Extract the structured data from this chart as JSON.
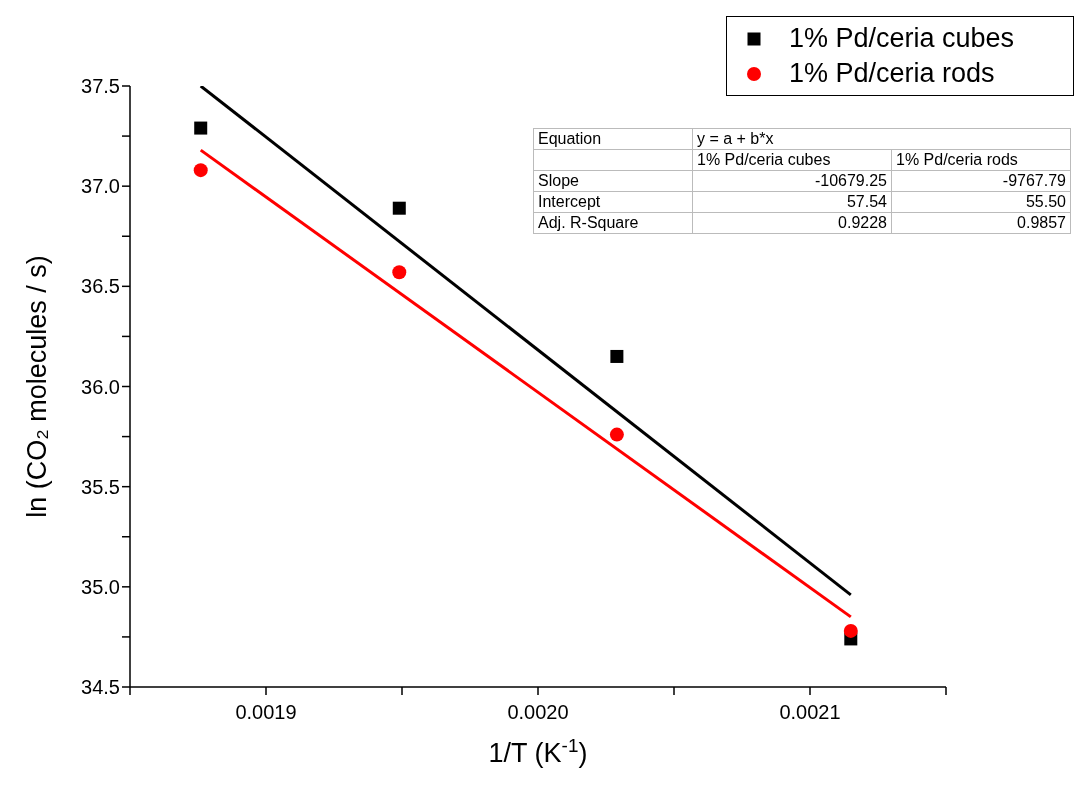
{
  "chart_data": {
    "type": "scatter",
    "xlabel": "1/T (K$^{-1}$)",
    "ylabel": "ln (CO₂ molecules / s)",
    "xlim": [
      0.00185,
      0.00215
    ],
    "ylim": [
      34.5,
      37.5
    ],
    "xticks": [
      {
        "value": 0.00185,
        "label": null
      },
      0.0019,
      {
        "value": 0.00195,
        "label": null
      },
      {
        "value": 0.002,
        "label": "0.0020"
      },
      {
        "value": 0.00205,
        "label": null
      },
      0.0021,
      {
        "value": 0.00215,
        "label": null
      }
    ],
    "yticks": [
      34.5,
      {
        "value": 34.75,
        "label": null
      },
      {
        "value": 35,
        "label": "35.0"
      },
      {
        "value": 35.25,
        "label": null
      },
      35.5,
      {
        "value": 35.75,
        "label": null
      },
      {
        "value": 36,
        "label": "36.0"
      },
      {
        "value": 36.25,
        "label": null
      },
      36.5,
      {
        "value": 36.75,
        "label": null
      },
      {
        "value": 37,
        "label": "37.0"
      },
      {
        "value": 37.25,
        "label": null
      },
      37.5
    ],
    "legend": "top right",
    "grid": false,
    "series": [
      {
        "name": "1% Pd/ceria cubes",
        "marker": "square",
        "color": "#000000",
        "x": [
          0.001876,
          0.001949,
          0.002029,
          0.002115
        ],
        "values": [
          37.29,
          36.89,
          36.15,
          34.74
        ]
      },
      {
        "name": "1% Pd/ceria rods",
        "marker": "circle",
        "color": "#ff0000",
        "x": [
          0.001876,
          0.001949,
          0.002029,
          0.002115
        ],
        "values": [
          37.08,
          36.57,
          35.76,
          34.78
        ]
      },
      {
        "type": "line",
        "color": "#000000",
        "x": [
          0.001876,
          0.002115
        ],
        "values": [
          37.5,
          34.96
        ]
      },
      {
        "type": "line",
        "color": "#ff0000",
        "x": [
          0.001876,
          0.002115
        ],
        "values": [
          37.18,
          34.85
        ]
      }
    ],
    "annotations": [
      "Equation",
      "y = a + b*x",
      "1% Pd/ceria cubes",
      "1% Pd/ceria rods",
      "Slope",
      "-10679.25",
      "-9767.79",
      "Intercept",
      "57.54",
      "55.50",
      "Adj. R-Square",
      "0.9228",
      "0.9857"
    ]
  }
}
